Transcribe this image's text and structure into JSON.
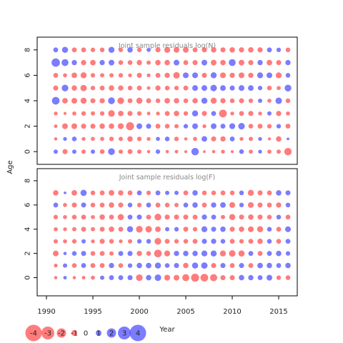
{
  "chart_data": {
    "type": "scatter",
    "ylabel": "Age",
    "xlabel": "Year",
    "x_ticks": [
      1990,
      1995,
      2000,
      2005,
      2010,
      2015
    ],
    "y_ticks": [
      0,
      2,
      4,
      6,
      8
    ],
    "xlim": [
      1989,
      2017
    ],
    "colors": {
      "negative": "#ff4444",
      "positive": "#4444ff"
    },
    "legend": {
      "values": [
        -4,
        -3,
        -2,
        -1,
        0,
        1,
        2,
        3,
        4
      ],
      "labels": [
        "-4",
        "-3",
        "-2",
        "-1",
        "0",
        "1",
        "2",
        "3",
        "4"
      ],
      "placement": "bottom-left"
    },
    "panels": [
      {
        "title": "Joint sample residuals log(N)",
        "ylim": [
          -1,
          9
        ],
        "years": [
          1991,
          1992,
          1993,
          1994,
          1995,
          1996,
          1997,
          1998,
          1999,
          2000,
          2001,
          2002,
          2003,
          2004,
          2005,
          2006,
          2007,
          2008,
          2009,
          2010,
          2011,
          2012,
          2013,
          2014,
          2015,
          2016
        ],
        "ages": [
          0,
          1,
          2,
          3,
          4,
          5,
          6,
          7,
          8
        ],
        "residuals": [
          [
            1.0,
            -1.4,
            1.0,
            -1.0,
            1.0,
            -1.2,
            2.5,
            -1.0,
            -1.3,
            -1.0,
            -0.6,
            1.1,
            -0.6,
            -0.7,
            -0.5,
            3.0,
            -0.4,
            -0.6,
            -0.8,
            -0.5,
            1.2,
            -0.9,
            0.8,
            -0.9,
            -1.0,
            -3.0
          ],
          [
            -0.6,
            0.8,
            1.2,
            -0.8,
            -0.9,
            -0.9,
            -1.1,
            -1.0,
            -1.6,
            -1.1,
            -0.8,
            0.9,
            1.2,
            -1.1,
            -0.6,
            -0.9,
            1.7,
            -1.4,
            -1.5,
            1.3,
            -0.8,
            -1.0,
            0.8,
            -0.5,
            -1.6,
            0.4
          ],
          [
            -0.7,
            -1.8,
            -1.8,
            -1.4,
            -1.4,
            -1.6,
            -1.6,
            -1.9,
            -3.5,
            1.8,
            1.4,
            -1.3,
            -1.2,
            -1.0,
            1.1,
            1.8,
            -0.8,
            1.8,
            1.3,
            1.9,
            2.3,
            -1.2,
            -1.3,
            -1.1,
            1.1,
            -1.3
          ],
          [
            -0.8,
            -0.5,
            -0.9,
            -1.1,
            -1.0,
            -1.1,
            -2.4,
            -1.6,
            -1.4,
            -1.1,
            -0.7,
            -0.8,
            -1.3,
            -1.6,
            -1.1,
            2.0,
            -1.4,
            1.3,
            -3.3,
            -0.8,
            -1.3,
            -1.4,
            -0.8,
            1.0,
            -1.5,
            -0.9
          ],
          [
            3.2,
            -1.7,
            -1.8,
            -2.0,
            -1.4,
            -1.5,
            2.5,
            -2.4,
            -1.3,
            -2.0,
            -1.4,
            -1.2,
            -1.7,
            -1.6,
            -1.2,
            -1.6,
            2.0,
            -2.0,
            -1.5,
            -1.2,
            -1.4,
            -1.1,
            1.0,
            -0.9,
            2.3,
            -1.2
          ],
          [
            -1.4,
            2.4,
            -1.6,
            -2.2,
            -1.1,
            -1.3,
            -1.6,
            -1.5,
            -1.2,
            -1.3,
            -0.7,
            -1.5,
            -1.2,
            -1.1,
            -1.3,
            1.8,
            1.8,
            2.3,
            1.7,
            1.4,
            1.8,
            1.7,
            1.1,
            -1.2,
            -0.9,
            2.5
          ],
          [
            -1.3,
            -0.9,
            -1.7,
            -2.0,
            -1.1,
            -1.0,
            -1.0,
            -1.1,
            -0.8,
            -1.4,
            -0.8,
            -1.3,
            -1.5,
            -2.3,
            1.8,
            1.8,
            -1.4,
            2.0,
            -1.8,
            -1.5,
            -1.8,
            -1.5,
            1.9,
            1.8,
            -1.9,
            1.2
          ],
          [
            3.8,
            2.6,
            1.5,
            -1.5,
            -1.7,
            1.5,
            1.8,
            -1.2,
            -1.2,
            -1.5,
            -1.0,
            -1.6,
            -1.6,
            1.8,
            -1.3,
            -1.4,
            1.8,
            -1.8,
            -1.6,
            2.6,
            -1.8,
            -1.4,
            1.5,
            -1.7,
            -1.4,
            1.5
          ],
          [
            1.3,
            2.0,
            -1.3,
            -1.3,
            -1.1,
            -1.2,
            2.0,
            -1.1,
            1.6,
            -1.1,
            0.9,
            -1.4,
            -1.9,
            -1.8,
            -1.8,
            -1.3,
            -1.4,
            -1.6,
            -1.4,
            -1.6,
            -1.5,
            -1.6,
            -1.5,
            1.3,
            1.1,
            -1.2
          ]
        ]
      },
      {
        "title": "Joint sample residuals log(F)",
        "ylim": [
          -1.5,
          9
        ],
        "years": [
          1991,
          1992,
          1993,
          1994,
          1995,
          1996,
          1997,
          1998,
          1999,
          2000,
          2001,
          2002,
          2003,
          2004,
          2005,
          2006,
          2007,
          2008,
          2009,
          2010,
          2011,
          2012,
          2013,
          2014,
          2015,
          2016
        ],
        "ages": [
          0,
          1,
          2,
          3,
          4,
          5,
          6,
          7
        ],
        "residuals": [
          [
            -0.6,
            0.7,
            -0.6,
            -0.7,
            -0.9,
            1.0,
            1.3,
            1.3,
            1.4,
            -2.4,
            1.6,
            2.3,
            -1.9,
            -1.8,
            -2.7,
            -3.5,
            -3.2,
            -2.8,
            -1.4,
            -1.4,
            1.6,
            1.5,
            1.3,
            1.8,
            -1.1,
            -1.2
          ],
          [
            -0.8,
            1.0,
            -1.2,
            1.3,
            -1.3,
            -1.3,
            1.5,
            -1.2,
            1.1,
            1.6,
            1.7,
            2.0,
            1.2,
            1.4,
            -1.6,
            2.0,
            2.2,
            -1.4,
            1.4,
            -1.3,
            1.4,
            -1.3,
            1.7,
            1.6,
            1.3,
            1.6
          ],
          [
            -1.8,
            0.6,
            1.2,
            1.4,
            -1.2,
            -1.3,
            -1.0,
            1.3,
            1.4,
            -1.5,
            -1.2,
            -3.2,
            -1.9,
            1.5,
            1.6,
            1.6,
            1.9,
            2.0,
            -1.9,
            -2.3,
            -2.1,
            1.3,
            -1.3,
            1.3,
            1.6,
            1.1
          ],
          [
            -1.0,
            -0.9,
            -1.1,
            1.0,
            -0.8,
            -1.4,
            -1.2,
            -0.8,
            -1.0,
            1.1,
            1.2,
            -2.4,
            -1.3,
            -1.1,
            -1.2,
            -1.3,
            1.4,
            1.5,
            1.2,
            -1.3,
            -1.1,
            -1.3,
            -1.6,
            1.2,
            -1.3,
            1.3
          ],
          [
            -0.9,
            -0.8,
            -1.0,
            -1.3,
            -1.0,
            -1.3,
            -1.6,
            -1.3,
            2.0,
            -2.4,
            -2.3,
            -1.7,
            1.0,
            1.1,
            -1.4,
            -1.1,
            1.9,
            1.4,
            1.6,
            -1.4,
            -1.6,
            -1.8,
            -2.0,
            1.2,
            -1.3,
            1.8
          ],
          [
            -1.1,
            -0.9,
            -1.2,
            -1.3,
            -0.9,
            -1.6,
            -1.3,
            -2.1,
            1.3,
            1.4,
            -1.3,
            -2.5,
            -1.4,
            -1.4,
            -1.4,
            -1.3,
            1.5,
            1.3,
            -1.0,
            -2.0,
            -1.4,
            -1.6,
            -1.4,
            -1.2,
            1.2,
            -1.3
          ],
          [
            1.3,
            -0.9,
            -1.4,
            1.4,
            -1.2,
            -1.3,
            -1.6,
            -1.4,
            1.2,
            -1.1,
            1.3,
            -1.3,
            -1.2,
            -1.0,
            1.3,
            1.6,
            -1.3,
            1.5,
            1.7,
            -1.8,
            1.1,
            -1.8,
            -1.4,
            -1.3,
            -1.5,
            1.2
          ],
          [
            -1.6,
            0.4,
            -1.7,
            2.1,
            -1.2,
            -1.3,
            -1.7,
            -1.5,
            -1.3,
            1.3,
            -1.1,
            1.3,
            1.0,
            1.0,
            -1.3,
            1.6,
            -1.2,
            -1.2,
            -1.3,
            -1.2,
            1.2,
            -2.0,
            -1.4,
            -1.3,
            1.6,
            1.4
          ]
        ]
      }
    ]
  }
}
